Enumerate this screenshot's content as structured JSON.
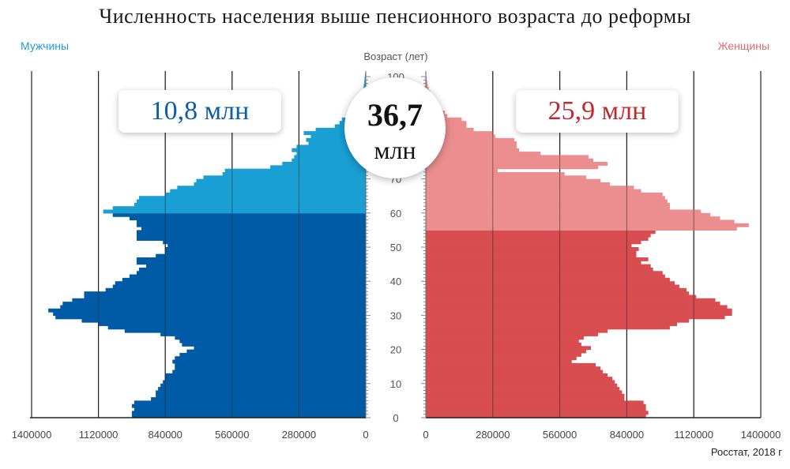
{
  "title": "Численность населения выше пенсионного возраста до реформы",
  "labels": {
    "men": "Мужчины",
    "women": "Женщины"
  },
  "summary": {
    "men_total": "10,8 млн",
    "women_total": "25,9 млн",
    "total_number": "36,7",
    "total_unit": "млн"
  },
  "source": "Росстат, 2018 г",
  "colors": {
    "men_working": "#005ba7",
    "men_pension": "#1a9fd4",
    "women_working": "#d84d4f",
    "women_pension": "#ec8e90",
    "grid": "#222222"
  },
  "chart_data": {
    "type": "bar",
    "orientation": "horizontal-pyramid",
    "axis_title": "Возраст (лет)",
    "age_ticks": [
      0,
      10,
      20,
      30,
      40,
      50,
      60,
      70,
      80,
      90,
      100
    ],
    "x_ticks_left": [
      "1400000",
      "1120000",
      "840000",
      "560000",
      "280000",
      "0"
    ],
    "x_ticks_right": [
      "0",
      "280000",
      "560000",
      "840000",
      "1120000",
      "1400000"
    ],
    "xlim": [
      0,
      1400000
    ],
    "men_pension_age_from": 60,
    "women_pension_age_from": 55,
    "series": [
      {
        "name": "Мужчины",
        "ages": [
          0,
          1,
          2,
          3,
          4,
          5,
          6,
          7,
          8,
          9,
          10,
          11,
          12,
          13,
          14,
          15,
          16,
          17,
          18,
          19,
          20,
          21,
          22,
          23,
          24,
          25,
          26,
          27,
          28,
          29,
          30,
          31,
          32,
          33,
          34,
          35,
          36,
          37,
          38,
          39,
          40,
          41,
          42,
          43,
          44,
          45,
          46,
          47,
          48,
          49,
          50,
          51,
          52,
          53,
          54,
          55,
          56,
          57,
          58,
          59,
          60,
          61,
          62,
          63,
          64,
          65,
          66,
          67,
          68,
          69,
          70,
          71,
          72,
          73,
          74,
          75,
          76,
          77,
          78,
          79,
          80,
          81,
          82,
          83,
          84,
          85,
          86,
          87,
          88,
          89,
          90,
          91,
          92,
          93,
          94,
          95,
          96,
          97,
          98,
          99,
          100
        ],
        "values": [
          980000,
          980000,
          970000,
          980000,
          970000,
          900000,
          880000,
          880000,
          870000,
          860000,
          850000,
          840000,
          840000,
          810000,
          800000,
          800000,
          810000,
          800000,
          780000,
          750000,
          720000,
          770000,
          780000,
          800000,
          860000,
          1010000,
          1080000,
          1120000,
          1190000,
          1300000,
          1310000,
          1330000,
          1280000,
          1270000,
          1230000,
          1180000,
          1180000,
          1090000,
          1060000,
          1050000,
          1020000,
          990000,
          960000,
          950000,
          920000,
          960000,
          960000,
          880000,
          840000,
          840000,
          830000,
          850000,
          960000,
          960000,
          960000,
          940000,
          960000,
          960000,
          990000,
          1060000,
          1100000,
          1060000,
          970000,
          960000,
          950000,
          840000,
          820000,
          790000,
          720000,
          710000,
          680000,
          600000,
          590000,
          400000,
          350000,
          310000,
          300000,
          290000,
          310000,
          290000,
          240000,
          250000,
          230000,
          260000,
          210000,
          130000,
          110000,
          100000,
          60000,
          60000,
          40000,
          30000,
          25000,
          20000,
          15000,
          12000,
          10000,
          8000,
          6000,
          5000,
          3000
        ]
      },
      {
        "name": "Женщины",
        "ages": [
          0,
          1,
          2,
          3,
          4,
          5,
          6,
          7,
          8,
          9,
          10,
          11,
          12,
          13,
          14,
          15,
          16,
          17,
          18,
          19,
          20,
          21,
          22,
          23,
          24,
          25,
          26,
          27,
          28,
          29,
          30,
          31,
          32,
          33,
          34,
          35,
          36,
          37,
          38,
          39,
          40,
          41,
          42,
          43,
          44,
          45,
          46,
          47,
          48,
          49,
          50,
          51,
          52,
          53,
          54,
          55,
          56,
          57,
          58,
          59,
          60,
          61,
          62,
          63,
          64,
          65,
          66,
          67,
          68,
          69,
          70,
          71,
          72,
          73,
          74,
          75,
          76,
          77,
          78,
          79,
          80,
          81,
          82,
          83,
          84,
          85,
          86,
          87,
          88,
          89,
          90,
          91,
          92,
          93,
          94,
          95,
          96,
          97,
          98,
          99,
          100
        ],
        "values": [
          920000,
          930000,
          920000,
          920000,
          910000,
          830000,
          830000,
          820000,
          810000,
          800000,
          790000,
          780000,
          760000,
          740000,
          730000,
          710000,
          610000,
          630000,
          650000,
          670000,
          690000,
          650000,
          640000,
          660000,
          720000,
          760000,
          1020000,
          1050000,
          1100000,
          1250000,
          1280000,
          1280000,
          1260000,
          1230000,
          1210000,
          1130000,
          1100000,
          1090000,
          1060000,
          1040000,
          1020000,
          1000000,
          990000,
          950000,
          940000,
          900000,
          930000,
          880000,
          880000,
          890000,
          860000,
          900000,
          930000,
          940000,
          960000,
          1300000,
          1350000,
          1290000,
          1230000,
          1190000,
          1150000,
          1020000,
          1020000,
          1010000,
          1000000,
          990000,
          900000,
          870000,
          770000,
          730000,
          670000,
          580000,
          300000,
          720000,
          760000,
          700000,
          680000,
          480000,
          390000,
          380000,
          380000,
          370000,
          290000,
          280000,
          200000,
          170000,
          170000,
          150000,
          90000,
          80000,
          60000,
          45000,
          35000,
          28000,
          22000,
          18000,
          12000,
          8000,
          6000,
          4000,
          2000
        ]
      }
    ]
  }
}
